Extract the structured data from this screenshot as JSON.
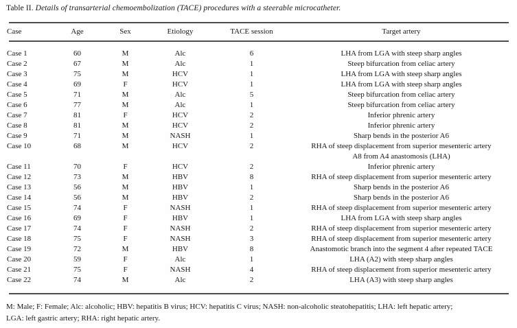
{
  "title": {
    "label": "Table II.",
    "description": "Details of transarterial chemoembolization (TACE) procedures with a steerable microcatheter."
  },
  "table": {
    "headers": {
      "case": "Case",
      "age": "Age",
      "sex": "Sex",
      "etiology": "Etiology",
      "tace_session": "TACE session",
      "target_artery": "Target artery"
    },
    "rows": [
      {
        "case": "Case 1",
        "age": "60",
        "sex": "M",
        "etiology": "Alc",
        "tace_session": "6",
        "target_artery": [
          "LHA from LGA with steep sharp angles"
        ]
      },
      {
        "case": "Case 2",
        "age": "67",
        "sex": "M",
        "etiology": "Alc",
        "tace_session": "1",
        "target_artery": [
          "Steep bifurcation from celiac artery"
        ]
      },
      {
        "case": "Case 3",
        "age": "75",
        "sex": "M",
        "etiology": "HCV",
        "tace_session": "1",
        "target_artery": [
          "LHA from LGA with steep sharp angles"
        ]
      },
      {
        "case": "Case 4",
        "age": "69",
        "sex": "F",
        "etiology": "HCV",
        "tace_session": "1",
        "target_artery": [
          "LHA from LGA with steep sharp angles"
        ]
      },
      {
        "case": "Case 5",
        "age": "71",
        "sex": "M",
        "etiology": "Alc",
        "tace_session": "5",
        "target_artery": [
          "Steep bifurcation from celiac artery"
        ]
      },
      {
        "case": "Case 6",
        "age": "77",
        "sex": "M",
        "etiology": "Alc",
        "tace_session": "1",
        "target_artery": [
          "Steep bifurcation from celiac artery"
        ]
      },
      {
        "case": "Case 7",
        "age": "81",
        "sex": "F",
        "etiology": "HCV",
        "tace_session": "2",
        "target_artery": [
          "Inferior phrenic artery"
        ]
      },
      {
        "case": "Case 8",
        "age": "81",
        "sex": "M",
        "etiology": "HCV",
        "tace_session": "2",
        "target_artery": [
          "Inferior phrenic artery"
        ]
      },
      {
        "case": "Case 9",
        "age": "71",
        "sex": "M",
        "etiology": "NASH",
        "tace_session": "1",
        "target_artery": [
          "Sharp bends in the posterior A6"
        ]
      },
      {
        "case": "Case 10",
        "age": "68",
        "sex": "M",
        "etiology": "HCV",
        "tace_session": "2",
        "target_artery": [
          "RHA of steep displacement from superior mesenteric artery",
          "A8 from A4 anastomosis (LHA)"
        ]
      },
      {
        "case": "Case 11",
        "age": "70",
        "sex": "F",
        "etiology": "HCV",
        "tace_session": "2",
        "target_artery": [
          "Inferior phrenic artery"
        ]
      },
      {
        "case": "Case 12",
        "age": "73",
        "sex": "M",
        "etiology": "HBV",
        "tace_session": "8",
        "target_artery": [
          "RHA of steep displacement from superior mesenteric artery"
        ]
      },
      {
        "case": "Case 13",
        "age": "56",
        "sex": "M",
        "etiology": "HBV",
        "tace_session": "1",
        "target_artery": [
          "Sharp bends in the posterior A6"
        ]
      },
      {
        "case": "Case 14",
        "age": "56",
        "sex": "M",
        "etiology": "HBV",
        "tace_session": "2",
        "target_artery": [
          "Sharp bends in the posterior A6"
        ]
      },
      {
        "case": "Case 15",
        "age": "74",
        "sex": "F",
        "etiology": "NASH",
        "tace_session": "1",
        "target_artery": [
          "RHA of steep displacement from superior mesenteric artery"
        ]
      },
      {
        "case": "Case 16",
        "age": "69",
        "sex": "F",
        "etiology": "HBV",
        "tace_session": "1",
        "target_artery": [
          "LHA from LGA with steep sharp angles"
        ]
      },
      {
        "case": "Case 17",
        "age": "74",
        "sex": "F",
        "etiology": "NASH",
        "tace_session": "2",
        "target_artery": [
          "RHA of steep displacement from superior mesenteric artery"
        ]
      },
      {
        "case": "Case 18",
        "age": "75",
        "sex": "F",
        "etiology": "NASH",
        "tace_session": "3",
        "target_artery": [
          "RHA of steep displacement from superior mesenteric artery"
        ]
      },
      {
        "case": "Case 19",
        "age": "72",
        "sex": "M",
        "etiology": "HBV",
        "tace_session": "8",
        "target_artery": [
          "Anastomotic branch into the segment 4 after repeated TACE"
        ]
      },
      {
        "case": "Case 20",
        "age": "59",
        "sex": "F",
        "etiology": "Alc",
        "tace_session": "1",
        "target_artery": [
          "LHA (A2) with steep sharp angles"
        ]
      },
      {
        "case": "Case 21",
        "age": "75",
        "sex": "F",
        "etiology": "NASH",
        "tace_session": "4",
        "target_artery": [
          "RHA of steep displacement from superior mesenteric artery"
        ]
      },
      {
        "case": "Case 22",
        "age": "74",
        "sex": "M",
        "etiology": "Alc",
        "tace_session": "2",
        "target_artery": [
          "LHA (A3) with steep sharp angles"
        ]
      }
    ]
  },
  "footnote_lines": {
    "line1": "M: Male; F: Female; Alc: alcoholic; HBV: hepatitis B virus; HCV: hepatitis C virus; NASH: non-alcoholic steatohepatitis; LHA: left hepatic artery;",
    "line2": "LGA: left gastric artery; RHA: right hepatic artery."
  }
}
